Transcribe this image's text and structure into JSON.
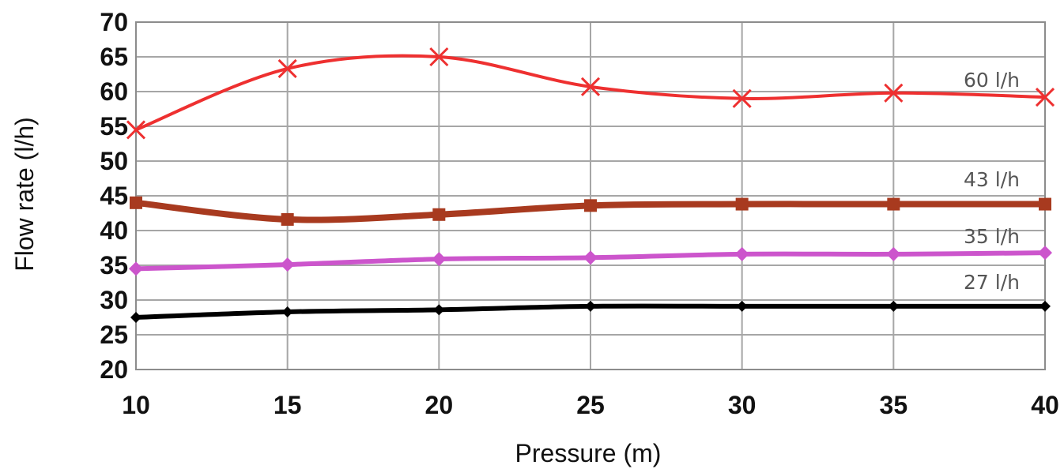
{
  "chart_data": {
    "type": "line",
    "title": "",
    "xlabel": "Pressure (m)",
    "ylabel": "Flow rate (l/h)",
    "x": [
      10,
      15,
      20,
      25,
      30,
      35,
      40
    ],
    "xlim": [
      10,
      40
    ],
    "ylim": [
      20,
      70
    ],
    "xticks": [
      "10",
      "15",
      "20",
      "25",
      "30",
      "35",
      "40"
    ],
    "yticks": [
      "20",
      "25",
      "30",
      "35",
      "40",
      "45",
      "50",
      "55",
      "60",
      "65",
      "70"
    ],
    "grid": true,
    "legend": "none",
    "series": [
      {
        "name": "60 l/h",
        "color": "#ee3030",
        "marker": "x",
        "values": [
          54.5,
          63.3,
          65.0,
          60.7,
          59.0,
          59.8,
          59.2
        ]
      },
      {
        "name": "43 l/h",
        "color": "#a83a1f",
        "marker": "square",
        "values": [
          44.0,
          41.6,
          42.3,
          43.6,
          43.8,
          43.8,
          43.8
        ]
      },
      {
        "name": "35 l/h",
        "color": "#cc55cc",
        "marker": "diamond",
        "values": [
          34.5,
          35.1,
          35.9,
          36.1,
          36.6,
          36.6,
          36.8
        ]
      },
      {
        "name": "27 l/h",
        "color": "#000000",
        "marker": "diamond",
        "values": [
          27.5,
          28.3,
          28.6,
          29.1,
          29.1,
          29.1,
          29.1
        ]
      }
    ]
  }
}
